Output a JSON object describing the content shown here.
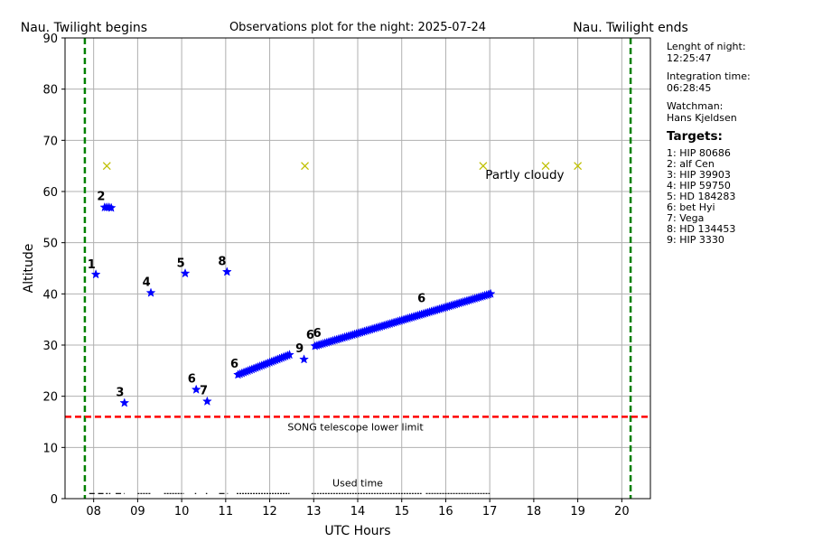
{
  "chart_data": {
    "type": "scatter",
    "title": "Observations plot for the night: 2025-07-24",
    "xlabel": "UTC Hours",
    "ylabel": "Altitude",
    "xlim": [
      7.35,
      20.65
    ],
    "ylim": [
      0,
      90
    ],
    "x_ticks": [
      8,
      9,
      10,
      11,
      12,
      13,
      14,
      15,
      16,
      17,
      18,
      19,
      20
    ],
    "x_tick_labels": [
      "08",
      "09",
      "10",
      "11",
      "12",
      "13",
      "14",
      "15",
      "16",
      "17",
      "18",
      "19",
      "20"
    ],
    "y_ticks": [
      0,
      10,
      20,
      30,
      40,
      50,
      60,
      70,
      80,
      90
    ],
    "grid": true,
    "twilight": {
      "begin_x": 7.8,
      "end_x": 20.2,
      "begin_label": "Nau. Twilight begins",
      "end_label": "Nau. Twilight ends",
      "color": "#008000"
    },
    "lower_limit": {
      "y": 16,
      "label": "SONG telescope lower limit",
      "color": "#ff0000"
    },
    "weather": {
      "marker_color": "#bfbf00",
      "y": 65,
      "x": [
        8.3,
        12.8,
        16.85,
        18.27,
        19.0
      ],
      "label": "Partly cloudy",
      "label_at": [
        16.9,
        62.5
      ]
    },
    "used_time": {
      "label": "Used time",
      "y": 1,
      "segments": [
        [
          7.9,
          8.05
        ],
        [
          8.1,
          8.25
        ],
        [
          8.28,
          8.32
        ],
        [
          8.35,
          8.38
        ],
        [
          8.5,
          8.7
        ],
        [
          9.0,
          9.3
        ],
        [
          9.6,
          10.05
        ],
        [
          10.3,
          10.33
        ],
        [
          10.55,
          10.58
        ],
        [
          10.85,
          11.05
        ],
        [
          11.25,
          12.45
        ],
        [
          12.95,
          15.45
        ],
        [
          15.55,
          17.0
        ]
      ]
    },
    "star_color": "#0000ff",
    "points": [
      {
        "target": "1",
        "x": 8.05,
        "y": 43.8
      },
      {
        "target": "2",
        "x": 8.25,
        "y": 56.9
      },
      {
        "target": "2",
        "x": 8.3,
        "y": 56.9
      },
      {
        "target": "2",
        "x": 8.35,
        "y": 56.9
      },
      {
        "target": "2",
        "x": 8.4,
        "y": 56.8
      },
      {
        "target": "3",
        "x": 8.7,
        "y": 18.7
      },
      {
        "target": "4",
        "x": 9.3,
        "y": 40.2
      },
      {
        "target": "5",
        "x": 10.08,
        "y": 44.0
      },
      {
        "target": "6",
        "x": 10.33,
        "y": 21.3
      },
      {
        "target": "7",
        "x": 10.58,
        "y": 19.0
      },
      {
        "target": "8",
        "x": 11.03,
        "y": 44.3
      },
      {
        "target": "9",
        "x": 12.78,
        "y": 27.2
      }
    ],
    "tracks": [
      {
        "target": "6",
        "x_start": 11.28,
        "x_end": 12.45,
        "y_start": 24.2,
        "y_end": 28.1,
        "step": 0.045
      },
      {
        "target": "6",
        "x_start": 13.03,
        "x_end": 17.02,
        "y_start": 29.8,
        "y_end": 40.0,
        "step": 0.045
      }
    ],
    "point_labels": [
      {
        "text": "1",
        "x": 7.95,
        "y": 45.0
      },
      {
        "text": "2",
        "x": 8.17,
        "y": 58.3
      },
      {
        "text": "3",
        "x": 8.6,
        "y": 20.0
      },
      {
        "text": "4",
        "x": 9.2,
        "y": 41.6
      },
      {
        "text": "5",
        "x": 9.98,
        "y": 45.3
      },
      {
        "text": "8",
        "x": 10.92,
        "y": 45.6
      },
      {
        "text": "6",
        "x": 10.23,
        "y": 22.7
      },
      {
        "text": "7",
        "x": 10.5,
        "y": 20.4
      },
      {
        "text": "6",
        "x": 11.2,
        "y": 25.6
      },
      {
        "text": "9",
        "x": 12.68,
        "y": 28.6
      },
      {
        "text": "6",
        "x": 12.92,
        "y": 31.2
      },
      {
        "text": "6",
        "x": 13.08,
        "y": 31.6
      },
      {
        "text": "6",
        "x": 15.45,
        "y": 38.4
      }
    ]
  },
  "info": {
    "length_label": "Lenght of night:",
    "length_value": "12:25:47",
    "integration_label": "Integration time:",
    "integration_value": "06:28:45",
    "watchman_label": "Watchman:",
    "watchman_value": "Hans Kjeldsen",
    "targets_title": "Targets:",
    "targets": [
      "1: HIP 80686",
      "2: alf Cen",
      "3: HIP 39903",
      "4: HIP 59750",
      "5: HD 184283",
      "6: bet Hyi",
      "7: Vega",
      "8: HD 134453",
      "9: HIP 3330"
    ]
  }
}
